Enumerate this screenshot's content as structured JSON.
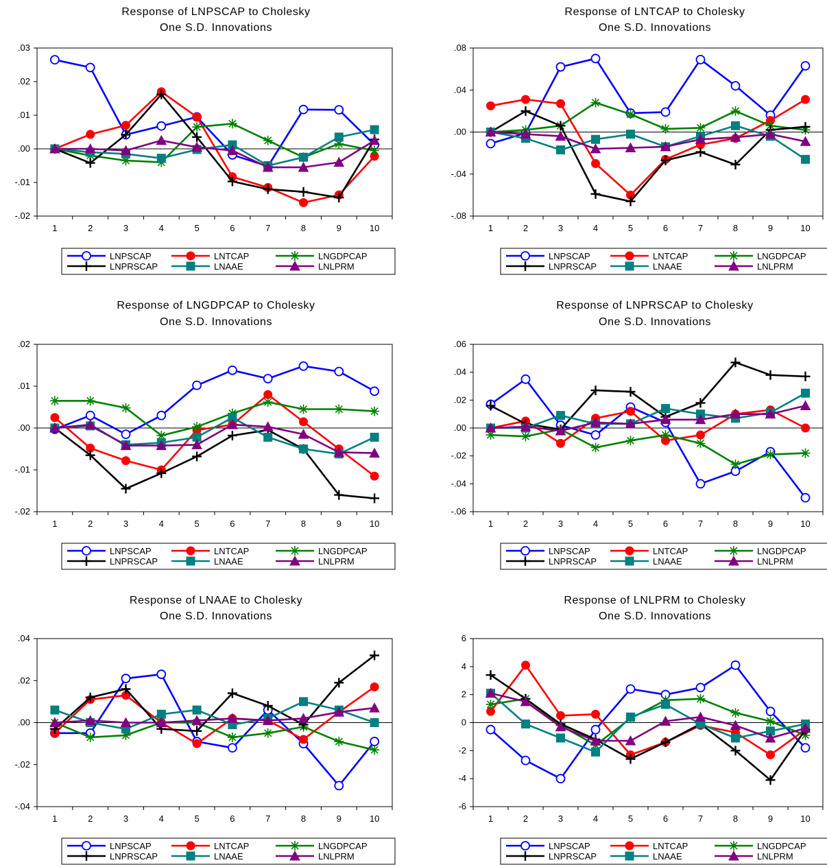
{
  "legend_labels": [
    "LNPSCAP",
    "LNTCAP",
    "LNGDPCAP",
    "LNPRSCAP",
    "LNAAE",
    "LNLPRM"
  ],
  "colors": {
    "LNPSCAP": "#0000ff",
    "LNTCAP": "#ff0000",
    "LNGDPCAP": "#008000",
    "LNPRSCAP": "#000000",
    "LNAAE": "#008080",
    "LNLPRM": "#800080"
  },
  "markers": {
    "LNPSCAP": "open-circle",
    "LNTCAP": "filled-circle",
    "LNGDPCAP": "asterisk",
    "LNPRSCAP": "plus",
    "LNAAE": "filled-square",
    "LNLPRM": "filled-triangle"
  },
  "chart_data": [
    {
      "type": "line",
      "title": "Response of LNPSCAP to Cholesky",
      "subtitle": "One S.D. Innovations",
      "x": [
        1,
        2,
        3,
        4,
        5,
        6,
        7,
        8,
        9,
        10
      ],
      "ylim": [
        -0.02,
        0.03
      ],
      "yticks": [
        -0.02,
        -0.01,
        0.0,
        0.01,
        0.02,
        0.03
      ],
      "ytick_labels": [
        "-.02",
        "-.01",
        ".00",
        ".01",
        ".02",
        ".03"
      ],
      "legend": "bottom",
      "series": [
        {
          "name": "LNPSCAP",
          "values": [
            0.0265,
            0.0242,
            0.0042,
            0.0068,
            0.0095,
            -0.0018,
            -0.0052,
            0.0117,
            0.0116,
            0.0012
          ]
        },
        {
          "name": "LNTCAP",
          "values": [
            0.0,
            0.0043,
            0.007,
            0.017,
            0.0095,
            -0.0083,
            -0.0115,
            -0.016,
            -0.0137,
            -0.0022
          ]
        },
        {
          "name": "LNGDPCAP",
          "values": [
            0.0,
            -0.002,
            -0.0035,
            -0.004,
            0.0065,
            0.0075,
            0.0025,
            -0.0025,
            0.0015,
            -0.0005
          ]
        },
        {
          "name": "LNPRSCAP",
          "values": [
            0.0,
            -0.0042,
            0.0042,
            0.0162,
            0.0035,
            -0.0097,
            -0.012,
            -0.0128,
            -0.0145,
            0.0028
          ]
        },
        {
          "name": "LNAAE",
          "values": [
            0.0,
            -0.001,
            -0.0015,
            -0.0028,
            -0.0002,
            0.0012,
            -0.005,
            -0.0025,
            0.0035,
            0.0057
          ]
        },
        {
          "name": "LNLPRM",
          "values": [
            0.0,
            0.0,
            -0.0005,
            0.0025,
            0.0005,
            -0.0005,
            -0.0055,
            -0.0055,
            -0.004,
            0.0025
          ]
        }
      ]
    },
    {
      "type": "line",
      "title": "Response of LNTCAP to Cholesky",
      "subtitle": "One S.D. Innovations",
      "x": [
        1,
        2,
        3,
        4,
        5,
        6,
        7,
        8,
        9,
        10
      ],
      "ylim": [
        -0.08,
        0.08
      ],
      "yticks": [
        -0.08,
        -0.04,
        0.0,
        0.04,
        0.08
      ],
      "ytick_labels": [
        "-.08",
        "-.04",
        ".00",
        ".04",
        ".08"
      ],
      "legend": "bottom",
      "series": [
        {
          "name": "LNPSCAP",
          "values": [
            -0.011,
            -0.001,
            0.062,
            0.07,
            0.018,
            0.019,
            0.069,
            0.044,
            0.016,
            0.063
          ]
        },
        {
          "name": "LNTCAP",
          "values": [
            0.025,
            0.031,
            0.027,
            -0.03,
            -0.06,
            -0.026,
            -0.012,
            -0.006,
            0.011,
            0.031
          ]
        },
        {
          "name": "LNGDPCAP",
          "values": [
            0.0,
            0.002,
            0.006,
            0.028,
            0.017,
            0.003,
            0.004,
            0.02,
            0.006,
            0.002
          ]
        },
        {
          "name": "LNPRSCAP",
          "values": [
            0.0,
            0.02,
            0.006,
            -0.059,
            -0.066,
            -0.027,
            -0.019,
            -0.031,
            0.002,
            0.005
          ]
        },
        {
          "name": "LNAAE",
          "values": [
            0.0,
            -0.006,
            -0.017,
            -0.007,
            -0.002,
            -0.014,
            -0.004,
            0.006,
            -0.004,
            -0.026
          ]
        },
        {
          "name": "LNLPRM",
          "values": [
            0.0,
            -0.002,
            -0.004,
            -0.016,
            -0.015,
            -0.014,
            -0.007,
            -0.005,
            -0.002,
            -0.009
          ]
        }
      ]
    },
    {
      "type": "line",
      "title": "Response of LNGDPCAP to Cholesky",
      "subtitle": "One S.D. Innovations",
      "x": [
        1,
        2,
        3,
        4,
        5,
        6,
        7,
        8,
        9,
        10
      ],
      "ylim": [
        -0.02,
        0.02
      ],
      "yticks": [
        -0.02,
        -0.01,
        0.0,
        0.01,
        0.02
      ],
      "ytick_labels": [
        "-.02",
        "-.01",
        ".00",
        ".01",
        ".02"
      ],
      "legend": "bottom",
      "series": [
        {
          "name": "LNPSCAP",
          "values": [
            -0.0003,
            0.003,
            -0.0015,
            0.003,
            0.0102,
            0.0138,
            0.0118,
            0.0148,
            0.0135,
            0.0088
          ]
        },
        {
          "name": "LNTCAP",
          "values": [
            0.0025,
            -0.0048,
            -0.0078,
            -0.01,
            -0.0005,
            0.0008,
            0.008,
            0.0015,
            -0.005,
            -0.0115
          ]
        },
        {
          "name": "LNGDPCAP",
          "values": [
            0.0065,
            0.0065,
            0.0048,
            -0.0018,
            0.0003,
            0.0035,
            0.0062,
            0.0045,
            0.0045,
            0.004
          ]
        },
        {
          "name": "LNPRSCAP",
          "values": [
            0.0,
            -0.0065,
            -0.0145,
            -0.0108,
            -0.0068,
            -0.0018,
            -0.0005,
            -0.005,
            -0.016,
            -0.0168
          ]
        },
        {
          "name": "LNAAE",
          "values": [
            0.0,
            0.0005,
            -0.004,
            -0.0035,
            -0.0022,
            0.0025,
            -0.0022,
            -0.005,
            -0.0062,
            -0.0022
          ]
        },
        {
          "name": "LNLPRM",
          "values": [
            0.0,
            0.0008,
            -0.0042,
            -0.0042,
            -0.004,
            0.0008,
            0.0003,
            -0.0015,
            -0.0058,
            -0.006
          ]
        }
      ]
    },
    {
      "type": "line",
      "title": "Response of LNPRSCAP to Cholesky",
      "subtitle": "One S.D. Innovations",
      "x": [
        1,
        2,
        3,
        4,
        5,
        6,
        7,
        8,
        9,
        10
      ],
      "ylim": [
        -0.06,
        0.06
      ],
      "yticks": [
        -0.06,
        -0.04,
        -0.02,
        0.0,
        0.02,
        0.04,
        0.06
      ],
      "ytick_labels": [
        "-.06",
        "-.04",
        "-.02",
        ".00",
        ".02",
        ".04",
        ".06"
      ],
      "legend": "bottom",
      "series": [
        {
          "name": "LNPSCAP",
          "values": [
            0.017,
            0.035,
            0.002,
            -0.005,
            0.015,
            0.004,
            -0.04,
            -0.031,
            -0.017,
            -0.05
          ]
        },
        {
          "name": "LNTCAP",
          "values": [
            0.0,
            0.005,
            -0.011,
            0.007,
            0.012,
            -0.009,
            -0.005,
            0.01,
            0.013,
            0.0
          ]
        },
        {
          "name": "LNGDPCAP",
          "values": [
            -0.005,
            -0.006,
            -0.001,
            -0.014,
            -0.009,
            -0.005,
            -0.011,
            -0.026,
            -0.019,
            -0.018
          ]
        },
        {
          "name": "LNPRSCAP",
          "values": [
            0.016,
            0.003,
            -0.001,
            0.027,
            0.026,
            0.008,
            0.018,
            0.047,
            0.038,
            0.037
          ]
        },
        {
          "name": "LNAAE",
          "values": [
            0.0,
            0.0,
            0.009,
            0.003,
            0.003,
            0.014,
            0.01,
            0.007,
            0.011,
            0.025
          ]
        },
        {
          "name": "LNLPRM",
          "values": [
            0.0,
            0.001,
            -0.002,
            0.004,
            0.003,
            0.006,
            0.006,
            0.01,
            0.01,
            0.016
          ]
        }
      ]
    },
    {
      "type": "line",
      "title": "Response of LNAAE to Cholesky",
      "subtitle": "One S.D. Innovations",
      "x": [
        1,
        2,
        3,
        4,
        5,
        6,
        7,
        8,
        9,
        10
      ],
      "ylim": [
        -0.04,
        0.04
      ],
      "yticks": [
        -0.04,
        -0.02,
        0.0,
        0.02,
        0.04
      ],
      "ytick_labels": [
        "-.04",
        "-.02",
        ".00",
        ".02",
        ".04"
      ],
      "legend": "bottom",
      "series": [
        {
          "name": "LNPSCAP",
          "values": [
            -0.005,
            -0.005,
            0.021,
            0.023,
            -0.009,
            -0.012,
            0.006,
            -0.01,
            -0.03,
            -0.009
          ]
        },
        {
          "name": "LNTCAP",
          "values": [
            -0.005,
            0.011,
            0.013,
            0.0,
            -0.01,
            0.002,
            0.001,
            -0.008,
            0.005,
            0.017
          ]
        },
        {
          "name": "LNGDPCAP",
          "values": [
            0.0,
            -0.007,
            -0.006,
            0.0,
            0.0,
            -0.007,
            -0.005,
            -0.002,
            -0.009,
            -0.013
          ]
        },
        {
          "name": "LNPRSCAP",
          "values": [
            -0.003,
            0.012,
            0.016,
            -0.003,
            -0.004,
            0.014,
            0.008,
            -0.001,
            0.019,
            0.032
          ]
        },
        {
          "name": "LNAAE",
          "values": [
            0.006,
            0.0,
            -0.003,
            0.004,
            0.006,
            -0.001,
            0.002,
            0.01,
            0.006,
            0.0
          ]
        },
        {
          "name": "LNLPRM",
          "values": [
            0.0,
            0.001,
            0.0,
            0.0,
            0.001,
            0.002,
            0.001,
            0.002,
            0.005,
            0.007
          ]
        }
      ]
    },
    {
      "type": "line",
      "title": "Response of LNLPRM to Cholesky",
      "subtitle": "One S.D. Innovations",
      "x": [
        1,
        2,
        3,
        4,
        5,
        6,
        7,
        8,
        9,
        10
      ],
      "ylim": [
        -6,
        6
      ],
      "yticks": [
        -6,
        -4,
        -2,
        0,
        2,
        4,
        6
      ],
      "ytick_labels": [
        "-6",
        "-4",
        "-2",
        "0",
        "2",
        "4",
        "6"
      ],
      "legend": "bottom",
      "series": [
        {
          "name": "LNPSCAP",
          "values": [
            -0.5,
            -2.7,
            -4.0,
            -0.5,
            2.4,
            2.0,
            2.5,
            4.1,
            0.8,
            -1.8
          ]
        },
        {
          "name": "LNTCAP",
          "values": [
            0.8,
            4.1,
            0.5,
            0.6,
            -2.3,
            -1.4,
            -0.2,
            -0.7,
            -2.3,
            -0.5
          ]
        },
        {
          "name": "LNGDPCAP",
          "values": [
            1.3,
            1.7,
            -0.2,
            -1.6,
            0.3,
            1.6,
            1.7,
            0.7,
            0.1,
            -0.9
          ]
        },
        {
          "name": "LNPRSCAP",
          "values": [
            3.4,
            1.7,
            -0.1,
            -1.2,
            -2.6,
            -1.4,
            -0.1,
            -2.0,
            -4.1,
            -0.5
          ]
        },
        {
          "name": "LNAAE",
          "values": [
            2.1,
            -0.1,
            -1.1,
            -2.1,
            0.4,
            1.3,
            -0.1,
            -1.1,
            -0.6,
            -0.1
          ]
        },
        {
          "name": "LNLPRM",
          "values": [
            2.1,
            1.5,
            -0.3,
            -1.3,
            -1.3,
            0.1,
            0.4,
            -0.2,
            -1.1,
            -0.4
          ]
        }
      ]
    }
  ]
}
